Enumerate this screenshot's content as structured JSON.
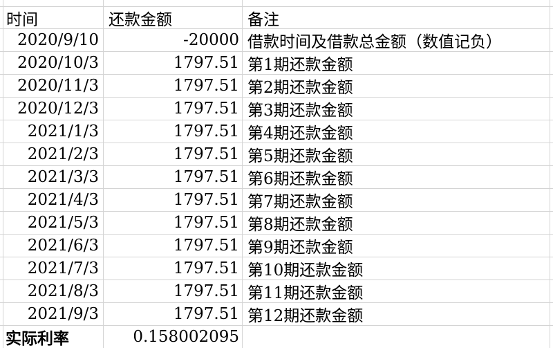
{
  "colors": {
    "background": "#ffffff",
    "gridline": "#d4d4d4",
    "text": "#000000"
  },
  "table": {
    "headers": {
      "time": "时间",
      "amount": "还款金额",
      "note": "备注"
    },
    "rows": [
      {
        "time": "2020/9/10",
        "amount": "-20000",
        "note": "借款时间及借款总金额（数值记负）"
      },
      {
        "time": "2020/10/3",
        "amount": "1797.51",
        "note": "第1期还款金额"
      },
      {
        "time": "2020/11/3",
        "amount": "1797.51",
        "note": "第2期还款金额"
      },
      {
        "time": "2020/12/3",
        "amount": "1797.51",
        "note": "第3期还款金额"
      },
      {
        "time": "2021/1/3",
        "amount": "1797.51",
        "note": "第4期还款金额"
      },
      {
        "time": "2021/2/3",
        "amount": "1797.51",
        "note": "第5期还款金额"
      },
      {
        "time": "2021/3/3",
        "amount": "1797.51",
        "note": "第6期还款金额"
      },
      {
        "time": "2021/4/3",
        "amount": "1797.51",
        "note": "第7期还款金额"
      },
      {
        "time": "2021/5/3",
        "amount": "1797.51",
        "note": "第8期还款金额"
      },
      {
        "time": "2021/6/3",
        "amount": "1797.51",
        "note": "第9期还款金额"
      },
      {
        "time": "2021/7/3",
        "amount": "1797.51",
        "note": "第10期还款金额"
      },
      {
        "time": "2021/8/3",
        "amount": "1797.51",
        "note": "第11期还款金额"
      },
      {
        "time": "2021/9/3",
        "amount": "1797.51",
        "note": "第12期还款金额"
      }
    ],
    "footer": {
      "label": "实际利率",
      "value": "0.158002095",
      "note": ""
    }
  }
}
